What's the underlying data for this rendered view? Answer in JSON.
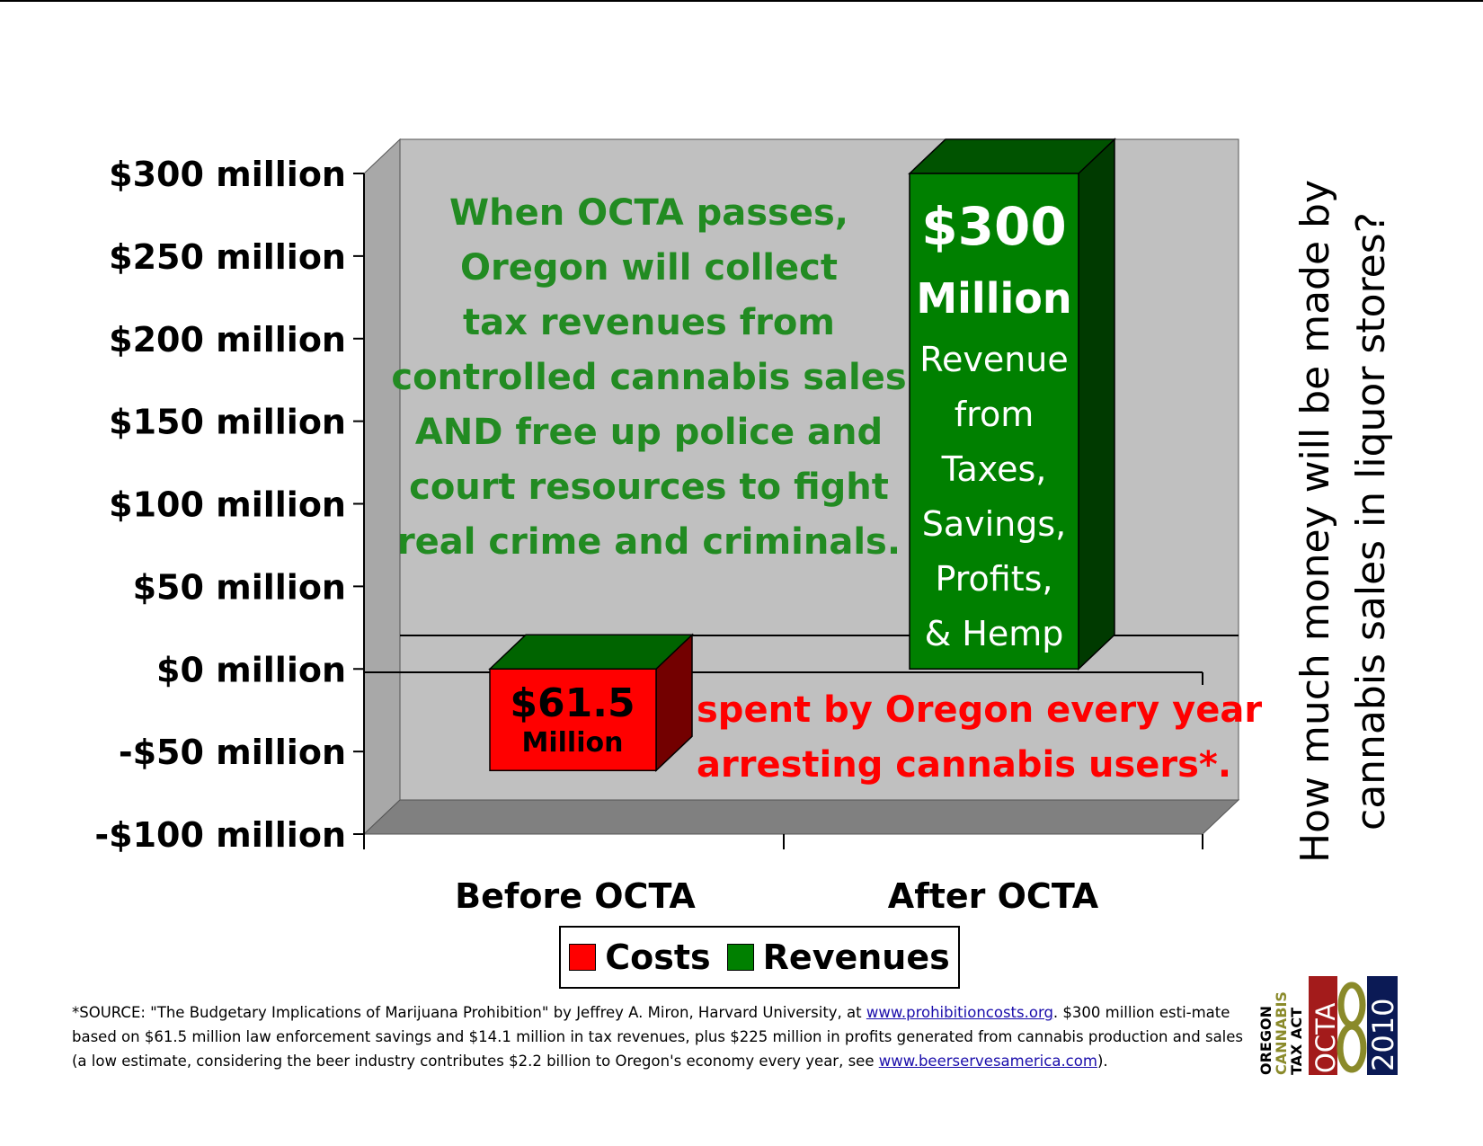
{
  "side_question": "How much money will be made by cannabis sales in liquor stores?",
  "chart_data": {
    "type": "bar",
    "categories": [
      "Before OCTA",
      "After OCTA"
    ],
    "series": [
      {
        "name": "Costs",
        "values": [
          -61.5,
          null
        ],
        "color": "#ff0000"
      },
      {
        "name": "Revenues",
        "values": [
          null,
          300
        ],
        "color": "#008000"
      }
    ],
    "ylim": [
      -100,
      300
    ],
    "yticks": [
      300,
      250,
      200,
      150,
      100,
      50,
      0,
      -50,
      -100
    ],
    "ytick_labels": [
      "$300 million",
      "$250 million",
      "$200 million",
      "$150 million",
      "$100 million",
      "$50 million",
      "$0 million",
      "-$50 million",
      "-$100 million"
    ],
    "three_d": true,
    "legend_position": "bottom",
    "grid": false,
    "bar_labels": {
      "costs": {
        "value": "$61.5",
        "unit": "Million"
      },
      "revenues": {
        "value": "$300",
        "unit": "Million",
        "detail_lines": [
          "Revenue",
          "from",
          "Taxes,",
          "Savings,",
          "Profits,",
          "& Hemp"
        ]
      }
    },
    "annotations": {
      "main_lines": [
        "When OCTA passes,",
        "Oregon will collect",
        "tax revenues from",
        "controlled cannabis sales",
        "AND free up police and",
        "court resources to fight",
        "real crime and criminals."
      ],
      "cost_lines": [
        "spent by Oregon every year",
        "arresting cannabis users*."
      ]
    },
    "colors": {
      "wall": "#c0c0c0",
      "floor": "#808080",
      "text_green": "#228b22",
      "text_red": "#ff0000"
    }
  },
  "footnote": {
    "part1": "*SOURCE: \"The Budgetary Implications of Marijuana Prohibition\" by Jeffrey A. Miron, Harvard University, at ",
    "link1": "www.prohibitioncosts.org",
    "part2": ".  $300 million esti-mate based on $61.5 million law enforcement savings and $14.1 million in tax revenues, plus $225 million in profits generated from cannabis production and sales (a low estimate, considering the beer industry contributes $2.2 billion to Oregon's economy every year, see ",
    "link2": "www.beerservesamerica.com",
    "part3": ")."
  },
  "logo": {
    "line1": "OREGON",
    "line2": "CANNABIS",
    "line3": "TAX ACT",
    "abbr": "OCTA",
    "year": "2010",
    "colors": {
      "red": "#a31b1b",
      "olive": "#8a8a2a",
      "navy": "#0b1a55"
    }
  }
}
